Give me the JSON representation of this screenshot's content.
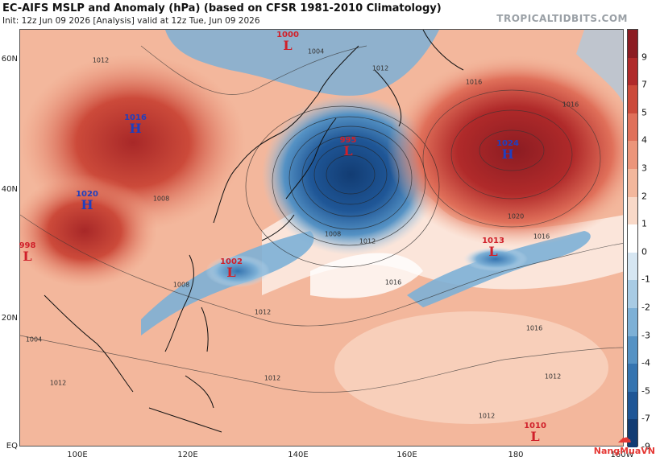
{
  "header": {
    "title": "EC-AIFS MSLP and Anomaly (hPa) (based on CFSR 1981-2010 Climatology)",
    "subtitle": "Init: 12z Jun 09 2026   [Analysis]   valid at 12z Tue, Jun 09 2026",
    "credit": "TROPICALTIDBITS.COM"
  },
  "axes": {
    "lat_labels": [
      "60N",
      "40N",
      "20N",
      "EQ"
    ],
    "lon_labels": [
      "100E",
      "120E",
      "140E",
      "160E",
      "180",
      "160W"
    ]
  },
  "pressure_systems": [
    {
      "type": "L",
      "value": "1000"
    },
    {
      "type": "H",
      "value": "1016"
    },
    {
      "type": "H",
      "value": "1020"
    },
    {
      "type": "L",
      "value": "995"
    },
    {
      "type": "H",
      "value": "1024"
    },
    {
      "type": "L",
      "value": "1013"
    },
    {
      "type": "L",
      "value": "1002"
    },
    {
      "type": "L",
      "value": "998"
    },
    {
      "type": "L",
      "value": "1010"
    }
  ],
  "isobar_labels": [
    "1012",
    "1004",
    "1012",
    "1016",
    "1016",
    "1008",
    "1012",
    "1016",
    "1020",
    "1016",
    "1008",
    "1012",
    "1016",
    "1012",
    "1012",
    "1004",
    "1008",
    "1012",
    "1012"
  ],
  "colorbar": {
    "labels": [
      "9",
      "7",
      "5",
      "4",
      "3",
      "2",
      "1",
      "0",
      "-1",
      "-2",
      "-3",
      "-4",
      "-5",
      "-7",
      "-9"
    ],
    "colors": [
      "#8c1c22",
      "#b02a2a",
      "#cc4a3a",
      "#e0705a",
      "#ec957a",
      "#f3b79c",
      "#f9d9c8",
      "#ffffff",
      "#d6e6f2",
      "#a8cbe4",
      "#7db0d6",
      "#5592c4",
      "#3574b0",
      "#1f5696",
      "#123c73"
    ]
  },
  "logo": {
    "text": "NangMuaVN"
  }
}
